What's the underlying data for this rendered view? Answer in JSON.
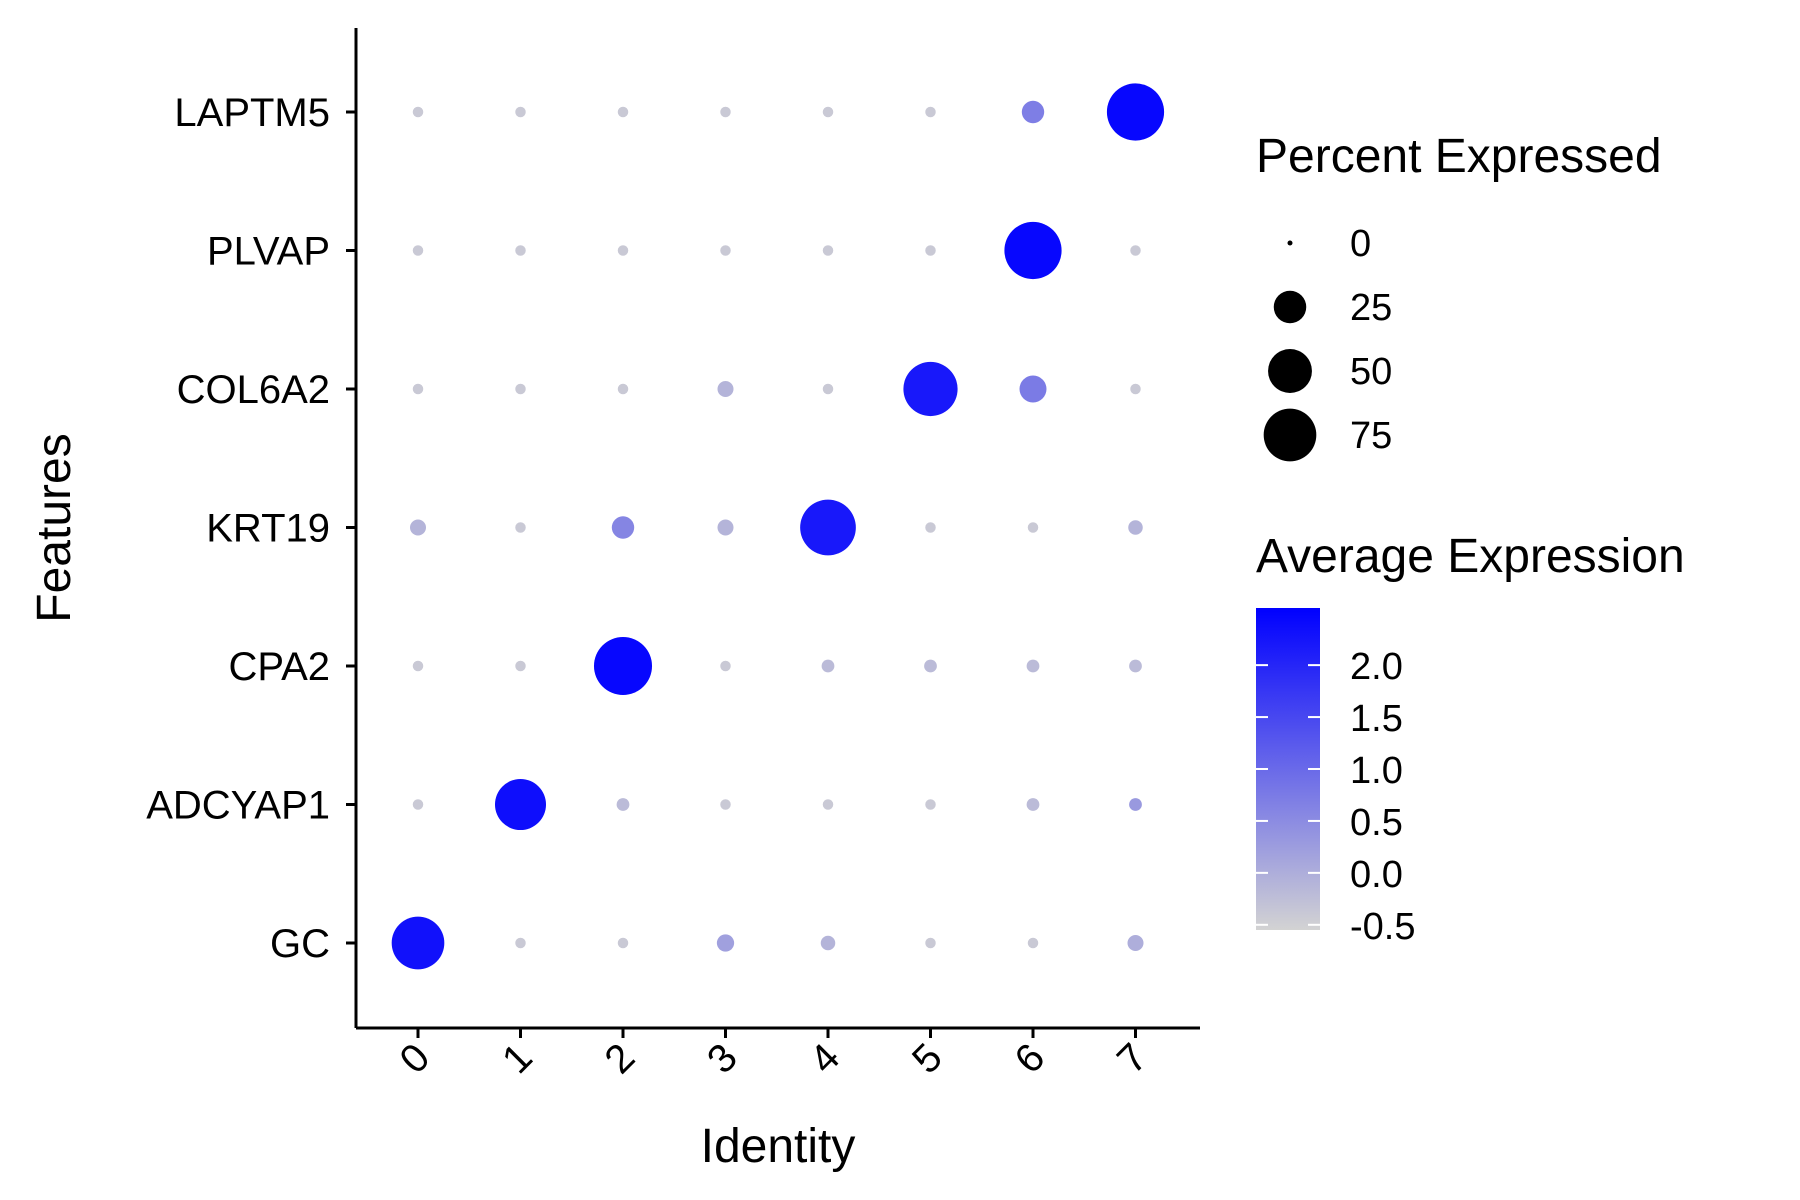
{
  "chart_data": {
    "type": "dot",
    "title": "",
    "xlabel": "Identity",
    "ylabel": "Features",
    "x": [
      "0",
      "1",
      "2",
      "3",
      "4",
      "5",
      "6",
      "7"
    ],
    "features": [
      "LAPTM5",
      "PLVAP",
      "COL6A2",
      "KRT19",
      "CPA2",
      "ADCYAP1",
      "GC"
    ],
    "points": [
      {
        "feature": "LAPTM5",
        "pct": [
          1,
          1,
          1,
          1,
          1,
          1,
          10,
          90
        ],
        "avg": [
          -0.4,
          -0.4,
          -0.4,
          -0.4,
          -0.4,
          -0.4,
          0.7,
          2.45
        ]
      },
      {
        "feature": "PLVAP",
        "pct": [
          1,
          1,
          1,
          1,
          1,
          1,
          90,
          1
        ],
        "avg": [
          -0.4,
          -0.4,
          -0.4,
          -0.4,
          -0.4,
          -0.4,
          2.45,
          -0.4
        ]
      },
      {
        "feature": "COL6A2",
        "pct": [
          1,
          1,
          1,
          4,
          1,
          80,
          16,
          1
        ],
        "avg": [
          -0.4,
          -0.4,
          -0.4,
          -0.1,
          -0.4,
          2.2,
          0.75,
          -0.4
        ]
      },
      {
        "feature": "KRT19",
        "pct": [
          4,
          1,
          10,
          4,
          85,
          1,
          1,
          3
        ],
        "avg": [
          -0.1,
          -0.4,
          0.6,
          -0.1,
          2.2,
          -0.4,
          -0.4,
          -0.1
        ]
      },
      {
        "feature": "CPA2",
        "pct": [
          1,
          1,
          93,
          1,
          2,
          2,
          2,
          2
        ],
        "avg": [
          -0.4,
          -0.4,
          2.45,
          -0.4,
          -0.2,
          -0.2,
          -0.2,
          -0.2
        ]
      },
      {
        "feature": "ADCYAP1",
        "pct": [
          1,
          70,
          2,
          1,
          1,
          1,
          2,
          2
        ],
        "avg": [
          -0.4,
          2.35,
          -0.2,
          -0.4,
          -0.4,
          -0.4,
          -0.2,
          0.3
        ]
      },
      {
        "feature": "GC",
        "pct": [
          75,
          1,
          1,
          5,
          3,
          1,
          1,
          4
        ],
        "avg": [
          2.3,
          -0.4,
          -0.4,
          0.2,
          -0.1,
          -0.4,
          -0.4,
          0.0
        ]
      }
    ],
    "size_legend": {
      "title": "Percent Expressed",
      "breaks": [
        "0",
        "25",
        "50",
        "75"
      ],
      "values": [
        0,
        25,
        50,
        75
      ]
    },
    "color_legend": {
      "title": "Average Expression",
      "breaks": [
        "2.0",
        "1.5",
        "1.0",
        "0.5",
        "0.0",
        "-0.5"
      ],
      "values": [
        2.0,
        1.5,
        1.0,
        0.5,
        0.0,
        -0.5
      ],
      "min": -0.55,
      "max": 2.55,
      "low_color": "#d3d3d3",
      "high_color": "#0000ff"
    },
    "grid": false,
    "legend_position": "right"
  }
}
